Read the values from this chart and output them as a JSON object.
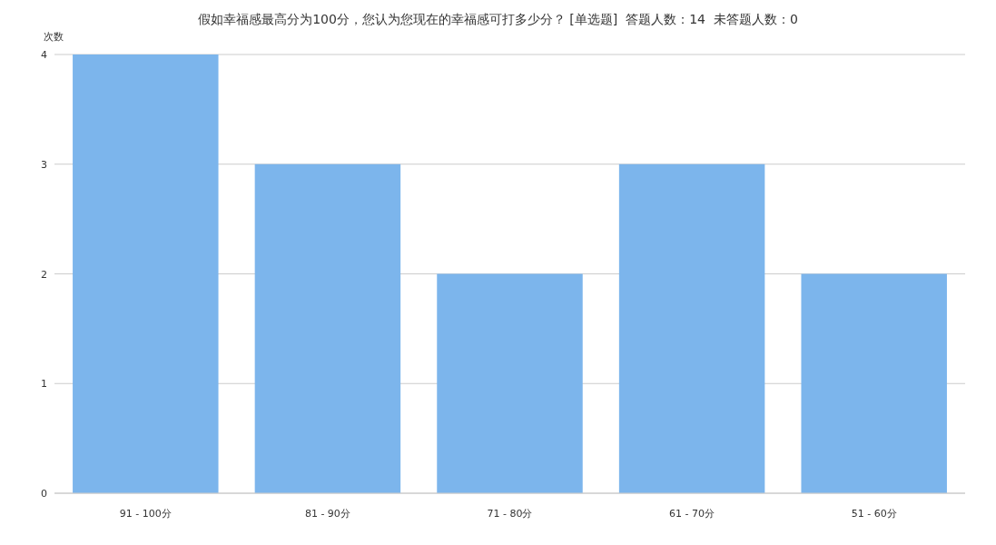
{
  "chart_data": {
    "type": "bar",
    "title": "假如幸福感最高分为100分，您认为您现在的幸福感可打多少分？ [单选题]  答题人数：14  未答题人数：0",
    "ylabel": "次数",
    "categories": [
      "91 - 100分",
      "81 - 90分",
      "71 - 80分",
      "61 - 70分",
      "51 - 60分"
    ],
    "values": [
      4,
      3,
      2,
      3,
      2
    ],
    "color": "#7cb5ec",
    "ylim": [
      0,
      4
    ],
    "yticks": [
      0,
      1,
      2,
      3,
      4
    ],
    "grid": "y"
  }
}
